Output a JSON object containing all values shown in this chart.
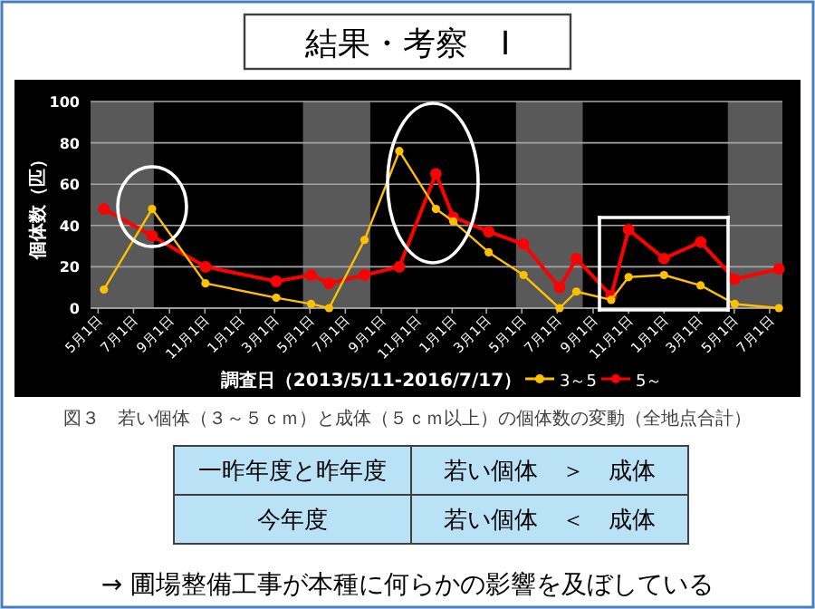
{
  "chart_data": {
    "type": "line",
    "title": "結果・考察　Ⅰ",
    "xlabel": "調査日（2013/5/11-2016/7/17）",
    "ylabel": "個体数（匹）",
    "xlim": [
      "2013-04-18",
      "2016-07-23"
    ],
    "xticks": [
      {
        "value": "2013-05-01",
        "label": "5月1日"
      },
      {
        "value": "2013-07-01",
        "label": "7月1日"
      },
      {
        "value": "2013-09-01",
        "label": "9月1日"
      },
      {
        "value": "2013-11-01",
        "label": "11月1日"
      },
      {
        "value": "2014-01-01",
        "label": "1月1日"
      },
      {
        "value": "2014-03-01",
        "label": "3月1日"
      },
      {
        "value": "2014-05-01",
        "label": "5月1日"
      },
      {
        "value": "2014-07-01",
        "label": "7月1日"
      },
      {
        "value": "2014-09-01",
        "label": "9月1日"
      },
      {
        "value": "2014-11-01",
        "label": "11月1日"
      },
      {
        "value": "2015-01-01",
        "label": "1月1日"
      },
      {
        "value": "2015-03-01",
        "label": "3月1日"
      },
      {
        "value": "2015-05-01",
        "label": "5月1日"
      },
      {
        "value": "2015-07-01",
        "label": "7月1日"
      },
      {
        "value": "2015-09-01",
        "label": "9月1日"
      },
      {
        "value": "2015-11-01",
        "label": "11月1日"
      },
      {
        "value": "2016-01-01",
        "label": "1月1日"
      },
      {
        "value": "2016-03-01",
        "label": "3月1日"
      },
      {
        "value": "2016-05-01",
        "label": "5月1日"
      },
      {
        "value": "2016-07-01",
        "label": "7月1日"
      }
    ],
    "ylim": [
      0,
      100
    ],
    "yticks": [
      0,
      20,
      40,
      60,
      80,
      100
    ],
    "grid": "y",
    "legend": "bottom",
    "marker": "circle",
    "x": [
      "2013-05-11",
      "2013-08-02",
      "2013-11-02",
      "2014-03-04",
      "2014-05-03",
      "2014-06-03",
      "2014-08-03",
      "2014-10-02",
      "2014-12-04",
      "2015-01-03",
      "2015-03-05",
      "2015-05-04",
      "2015-07-05",
      "2015-08-03",
      "2015-10-02",
      "2015-11-01",
      "2016-01-01",
      "2016-03-04",
      "2016-05-02",
      "2016-07-17"
    ],
    "series": [
      {
        "name": "3～5",
        "color": "#ffc000",
        "values": [
          9,
          48,
          12,
          5,
          2,
          0,
          33,
          76,
          48,
          42,
          27,
          16,
          0,
          8,
          4,
          15,
          16,
          11,
          2,
          0
        ]
      },
      {
        "name": "5～",
        "color": "#ff0000",
        "values": [
          48,
          35,
          20,
          13,
          16,
          12,
          16,
          20,
          65,
          44,
          37,
          31,
          10,
          24,
          6,
          38,
          24,
          32,
          14,
          19
        ]
      }
    ],
    "bands": [
      {
        "axis": "x",
        "from": "2013-04-18",
        "to": "2013-08-05",
        "color": "#595959"
      },
      {
        "axis": "x",
        "from": "2014-04-19",
        "to": "2014-08-13",
        "color": "#595959"
      },
      {
        "axis": "x",
        "from": "2015-04-21",
        "to": "2015-08-14",
        "color": "#595959"
      },
      {
        "axis": "x",
        "from": "2016-04-20",
        "to": "2016-07-23",
        "color": "#595959"
      }
    ],
    "annotations": [
      "図３　若い個体（３～５ｃｍ）と成体（５ｃｍ以上）の個体数の変動（全地点合計）",
      "一昨年度と昨年度",
      "若い個体　＞　成体",
      "今年度",
      "若い個体　＜　成体",
      "→ 圃場整備工事が本種に何らかの影響を及ぼしている"
    ]
  }
}
